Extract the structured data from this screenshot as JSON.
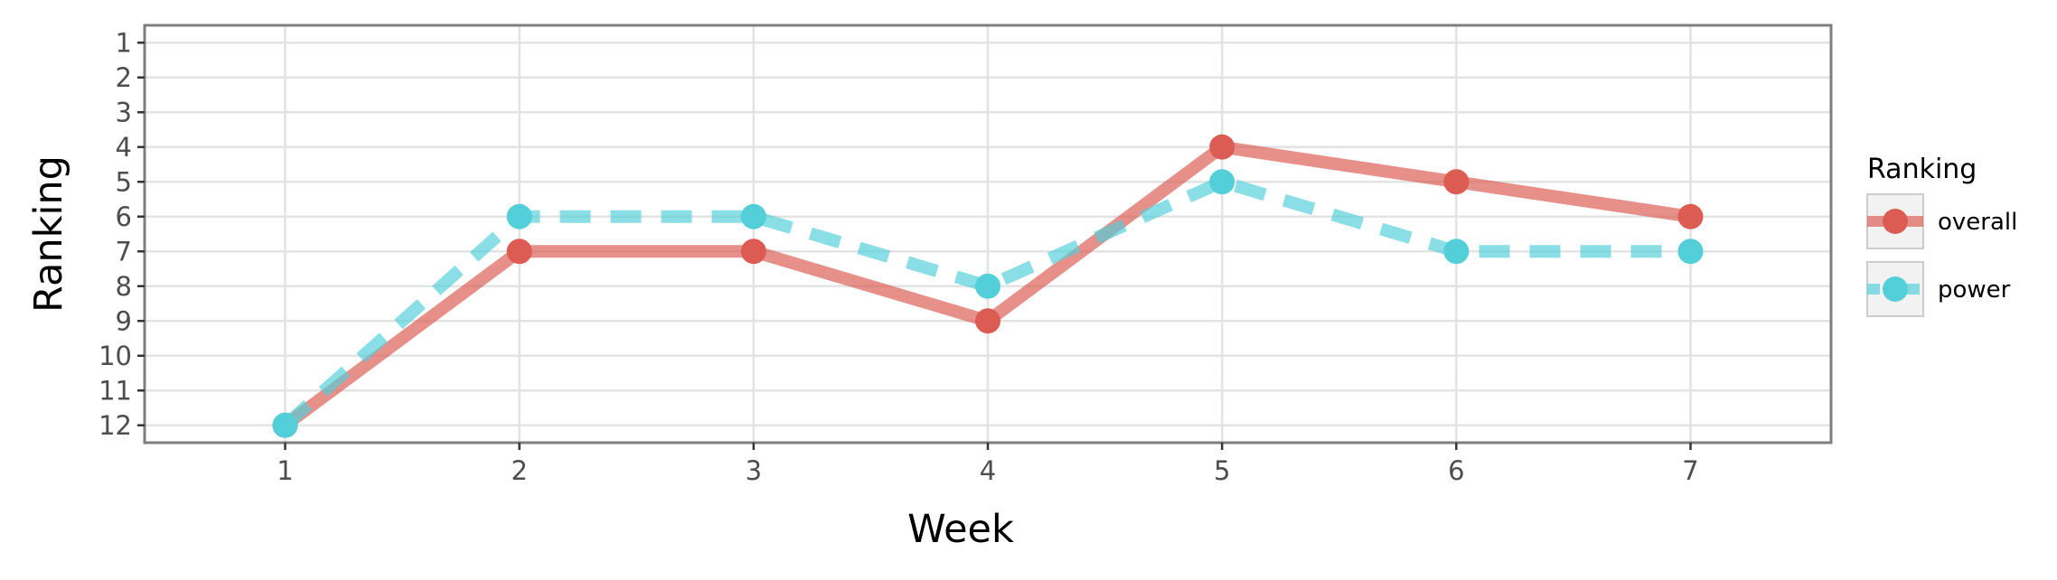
{
  "chart_data": {
    "type": "line",
    "xlabel": "Week",
    "ylabel": "Ranking",
    "x": [
      1,
      2,
      3,
      4,
      5,
      6,
      7
    ],
    "x_ticks": [
      "1",
      "2",
      "3",
      "4",
      "5",
      "6",
      "7"
    ],
    "y_ticks": [
      "1",
      "2",
      "3",
      "4",
      "5",
      "6",
      "7",
      "8",
      "9",
      "10",
      "11",
      "12"
    ],
    "xlim": [
      0.4,
      7.6
    ],
    "ylim": [
      12.5,
      0.5
    ],
    "y_reversed": true,
    "grid": true,
    "legend": {
      "title": "Ranking",
      "position": "right"
    },
    "series": [
      {
        "name": "overall",
        "values": [
          12,
          7,
          7,
          9,
          4,
          5,
          6
        ],
        "color": "#dc5b53",
        "line_style": "solid"
      },
      {
        "name": "power",
        "values": [
          12,
          6,
          6,
          8,
          5,
          7,
          7
        ],
        "color": "#52cfd9",
        "line_style": "dashed"
      }
    ]
  }
}
